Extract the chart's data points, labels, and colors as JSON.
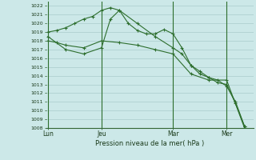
{
  "bg_color": "#cce8e8",
  "grid_color": "#aacccc",
  "line_color": "#2d6e2d",
  "title": "Pression niveau de la mer( hPa )",
  "ylim": [
    1008,
    1022.5
  ],
  "yticks": [
    1008,
    1009,
    1010,
    1011,
    1012,
    1013,
    1014,
    1015,
    1016,
    1017,
    1018,
    1019,
    1020,
    1021,
    1022
  ],
  "xtick_labels": [
    "Lun",
    "Jeu",
    "Mar",
    "Mer"
  ],
  "xtick_positions": [
    0,
    3,
    7,
    10
  ],
  "xlim": [
    -0.1,
    11.5
  ],
  "series1_x": [
    0,
    0.5,
    1,
    1.5,
    2,
    2.5,
    3,
    3.5,
    4,
    4.5,
    5,
    5.5,
    6,
    6.5,
    7,
    7.5,
    8,
    8.5,
    9,
    9.5,
    10,
    10.5,
    11
  ],
  "series1_y": [
    1019.0,
    1019.2,
    1019.5,
    1020.0,
    1020.5,
    1020.8,
    1021.5,
    1021.8,
    1021.5,
    1020.0,
    1019.2,
    1018.8,
    1018.8,
    1019.3,
    1018.8,
    1017.2,
    1015.2,
    1014.5,
    1013.8,
    1013.2,
    1013.0,
    1010.8,
    1008.2
  ],
  "series2_x": [
    0,
    1,
    2,
    3,
    3.5,
    4,
    5,
    6,
    7,
    7.5,
    8,
    8.5,
    9,
    9.5,
    10,
    10.5,
    11
  ],
  "series2_y": [
    1018.5,
    1017.0,
    1016.5,
    1017.2,
    1020.5,
    1021.5,
    1020.0,
    1018.5,
    1017.2,
    1016.5,
    1015.2,
    1014.2,
    1013.8,
    1013.5,
    1012.8,
    1011.0,
    1008.2
  ],
  "series3_x": [
    0,
    0.5,
    1,
    2,
    3,
    4,
    5,
    6,
    7,
    8,
    9,
    10,
    11
  ],
  "series3_y": [
    1018.0,
    1017.8,
    1017.5,
    1017.2,
    1018.0,
    1017.8,
    1017.5,
    1017.0,
    1016.5,
    1014.2,
    1013.5,
    1013.5,
    1008.0
  ]
}
